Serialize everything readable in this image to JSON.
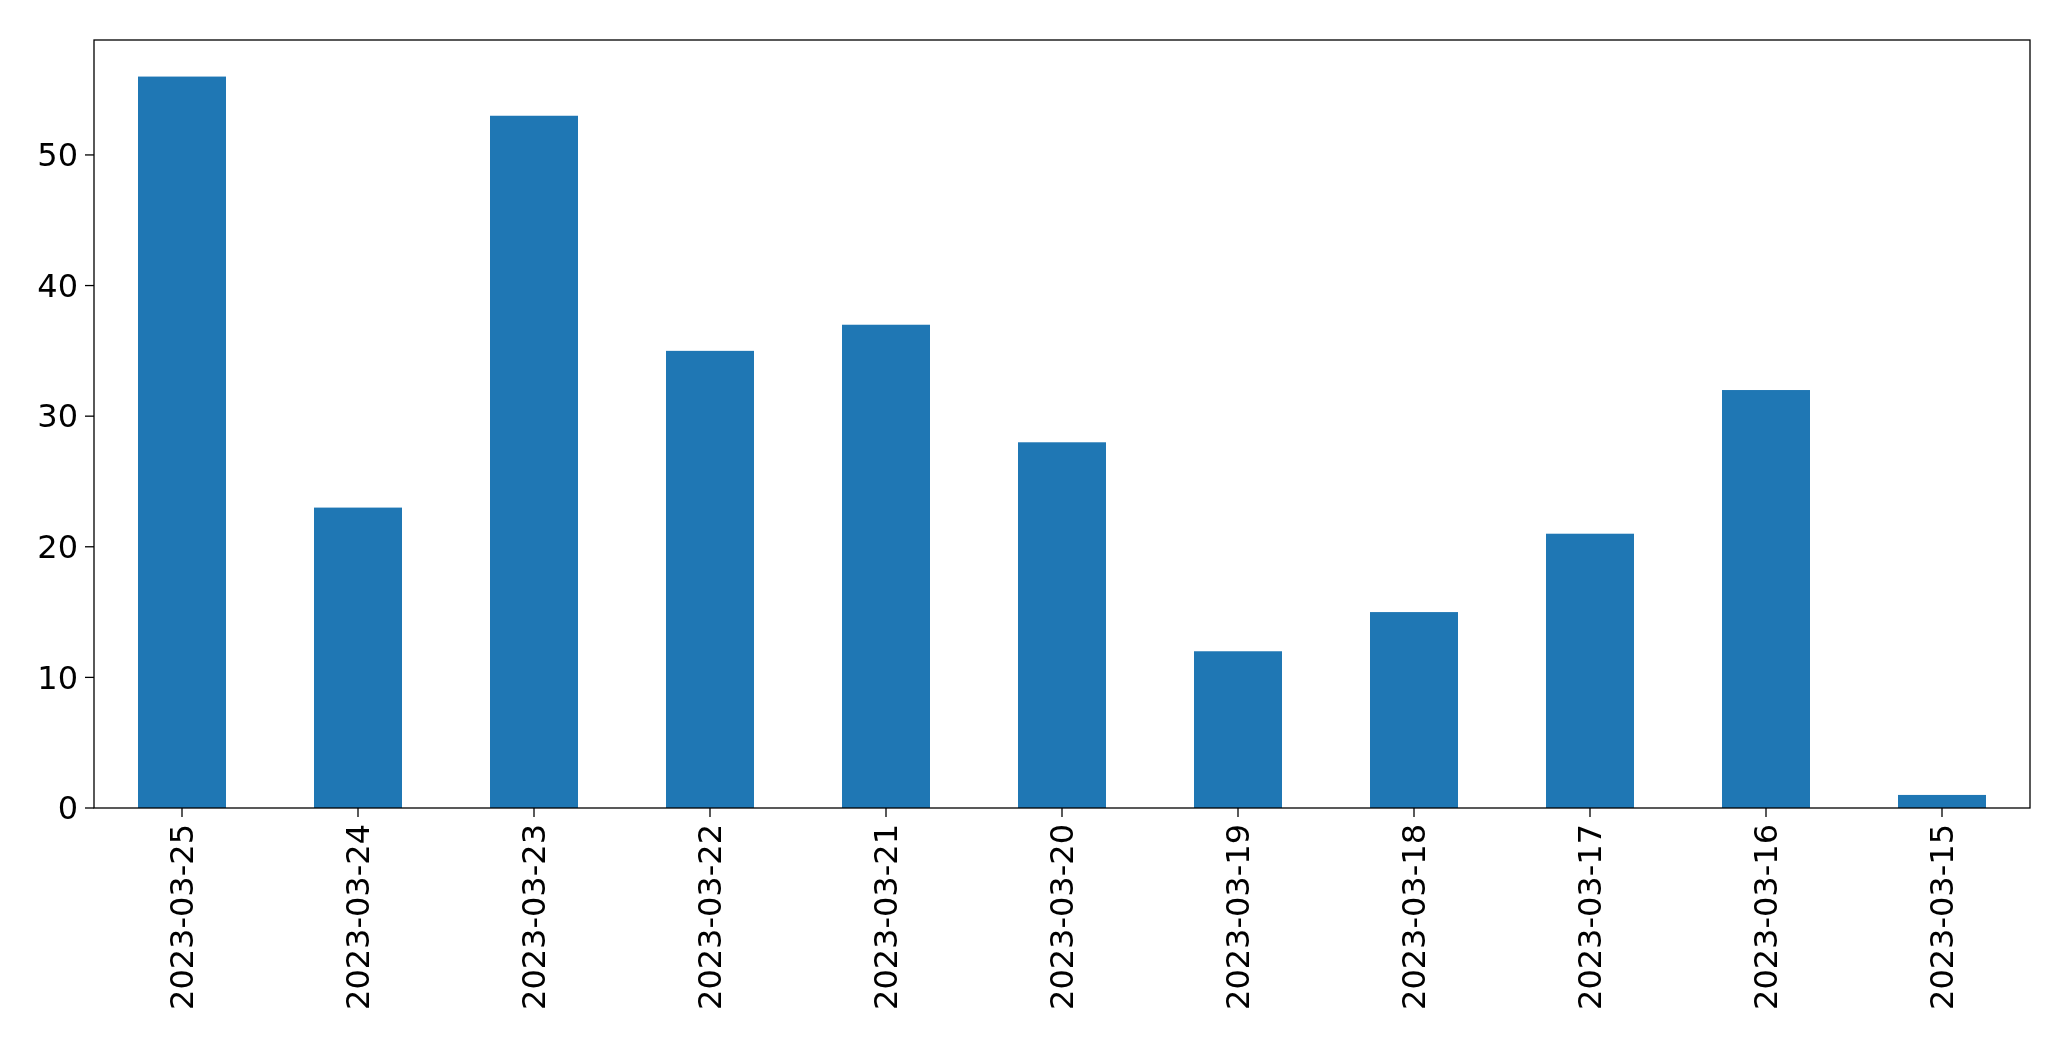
{
  "chart_data": {
    "type": "bar",
    "categories": [
      "2023-03-25",
      "2023-03-24",
      "2023-03-23",
      "2023-03-22",
      "2023-03-21",
      "2023-03-20",
      "2023-03-19",
      "2023-03-18",
      "2023-03-17",
      "2023-03-16",
      "2023-03-15"
    ],
    "values": [
      56,
      23,
      53,
      35,
      37,
      28,
      12,
      15,
      21,
      32,
      1
    ],
    "color": "#1f77b4",
    "ylim": [
      0,
      58.8
    ],
    "yticks": [
      0,
      10,
      20,
      30,
      40,
      50
    ],
    "grid": false
  }
}
